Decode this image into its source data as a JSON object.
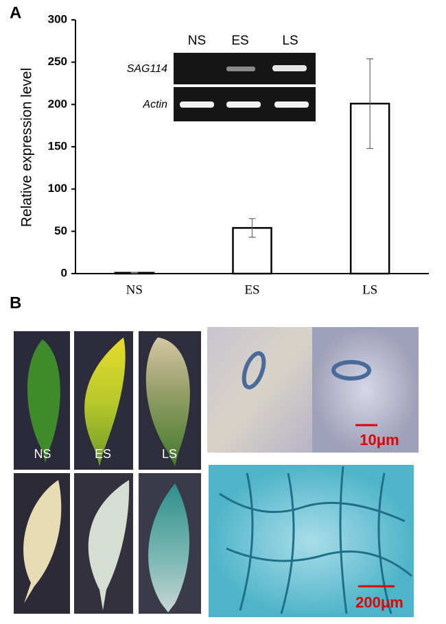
{
  "panel_labels": [
    "A",
    "B"
  ],
  "chart_data": {
    "type": "bar",
    "y_label": "Relative expression level",
    "categories": [
      "NS",
      "ES",
      "LS"
    ],
    "values": [
      1,
      54,
      201
    ],
    "errors": [
      0.5,
      11,
      53
    ],
    "color": "#ffffff",
    "ylim": [
      0,
      300
    ],
    "yticks": [
      0,
      50,
      100,
      150,
      200,
      250,
      300
    ]
  },
  "gel": {
    "lanes": [
      "NS",
      "ES",
      "LS"
    ],
    "rows": [
      "SAG114",
      "Actin"
    ]
  },
  "photos": {
    "leaf_labels": [
      "NS",
      "ES",
      "LS"
    ],
    "scale_bars": [
      "10μm",
      "200μm"
    ]
  }
}
